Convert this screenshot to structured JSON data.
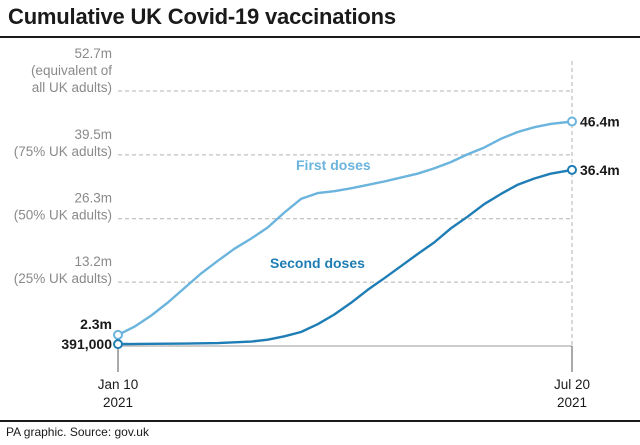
{
  "header": {
    "title": "Cumulative UK Covid-19 vaccinations"
  },
  "footer": {
    "source": "PA graphic. Source: gov.uk"
  },
  "colors": {
    "first_doses": "#6bb4dd",
    "second_doses": "#1f7db5",
    "grid": "#b3b3b3",
    "tick_text": "#8a8a8a"
  },
  "chart_data": {
    "type": "line",
    "title": "Cumulative UK Covid-19 vaccinations",
    "xlabel": "",
    "ylabel": "",
    "x_range": [
      "2021-01-10",
      "2021-07-20"
    ],
    "ylim": [
      0,
      52.7
    ],
    "grid": true,
    "x_ticks": [
      {
        "date": "2021-01-10",
        "line1": "Jan 10",
        "line2": "2021"
      },
      {
        "date": "2021-07-20",
        "line1": "Jul 20",
        "line2": "2021"
      }
    ],
    "y_ticks": [
      {
        "value": 52.7,
        "lines": [
          "52.7m",
          "(equivalent of",
          "all UK adults)"
        ]
      },
      {
        "value": 39.5,
        "lines": [
          "39.5m",
          "(75% UK adults)"
        ]
      },
      {
        "value": 26.3,
        "lines": [
          "26.3m",
          "(50% UK adults)"
        ]
      },
      {
        "value": 13.2,
        "lines": [
          "13.2m",
          "(25% UK adults)"
        ]
      }
    ],
    "series": [
      {
        "name": "First doses",
        "start_label": "2.3m",
        "end_label": "46.4m",
        "points": [
          [
            "2021-01-10",
            2.3
          ],
          [
            "2021-01-17",
            4.0
          ],
          [
            "2021-01-24",
            6.3
          ],
          [
            "2021-01-31",
            9.0
          ],
          [
            "2021-02-07",
            12.0
          ],
          [
            "2021-02-14",
            15.0
          ],
          [
            "2021-02-21",
            17.6
          ],
          [
            "2021-02-28",
            20.1
          ],
          [
            "2021-03-07",
            22.2
          ],
          [
            "2021-03-14",
            24.5
          ],
          [
            "2021-03-21",
            27.6
          ],
          [
            "2021-03-28",
            30.4
          ],
          [
            "2021-04-04",
            31.6
          ],
          [
            "2021-04-11",
            32.0
          ],
          [
            "2021-04-18",
            32.6
          ],
          [
            "2021-04-25",
            33.3
          ],
          [
            "2021-05-02",
            34.0
          ],
          [
            "2021-05-09",
            34.8
          ],
          [
            "2021-05-16",
            35.6
          ],
          [
            "2021-05-23",
            36.7
          ],
          [
            "2021-05-30",
            38.0
          ],
          [
            "2021-06-06",
            39.6
          ],
          [
            "2021-06-13",
            41.0
          ],
          [
            "2021-06-20",
            42.8
          ],
          [
            "2021-06-27",
            44.2
          ],
          [
            "2021-07-04",
            45.2
          ],
          [
            "2021-07-11",
            45.9
          ],
          [
            "2021-07-20",
            46.4
          ]
        ]
      },
      {
        "name": "Second doses",
        "start_label": "391,000",
        "end_label": "36.4m",
        "points": [
          [
            "2021-01-10",
            0.391
          ],
          [
            "2021-01-24",
            0.45
          ],
          [
            "2021-02-07",
            0.5
          ],
          [
            "2021-02-21",
            0.6
          ],
          [
            "2021-03-07",
            0.9
          ],
          [
            "2021-03-14",
            1.3
          ],
          [
            "2021-03-21",
            2.0
          ],
          [
            "2021-03-28",
            2.9
          ],
          [
            "2021-04-04",
            4.5
          ],
          [
            "2021-04-11",
            6.5
          ],
          [
            "2021-04-18",
            8.9
          ],
          [
            "2021-04-25",
            11.6
          ],
          [
            "2021-05-02",
            14.0
          ],
          [
            "2021-05-09",
            16.5
          ],
          [
            "2021-05-16",
            19.0
          ],
          [
            "2021-05-23",
            21.4
          ],
          [
            "2021-05-30",
            24.3
          ],
          [
            "2021-06-06",
            26.7
          ],
          [
            "2021-06-13",
            29.3
          ],
          [
            "2021-06-20",
            31.4
          ],
          [
            "2021-06-27",
            33.3
          ],
          [
            "2021-07-04",
            34.6
          ],
          [
            "2021-07-11",
            35.6
          ],
          [
            "2021-07-20",
            36.4
          ]
        ]
      }
    ]
  }
}
